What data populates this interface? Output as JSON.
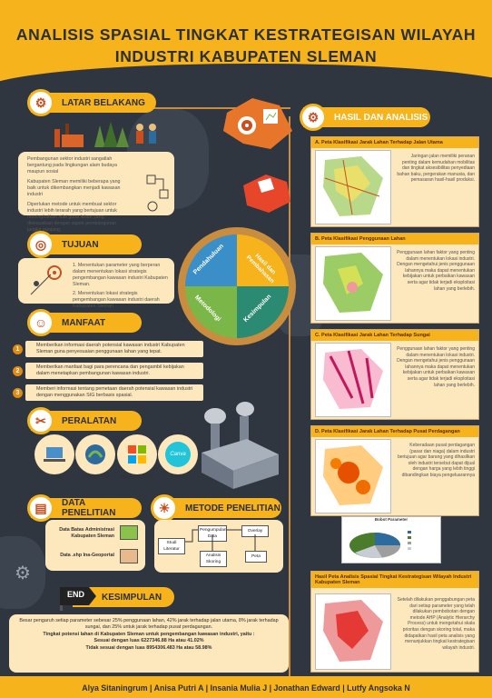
{
  "title": {
    "line1": "ANALISIS SPASIAL TINGKAT KESTRATEGISAN WILAYAH",
    "line2": "INDUSTRI KABUPATEN SLEMAN"
  },
  "latar": {
    "heading": "LATAR BELAKANG",
    "b1": "Pembangunan sektor industri sangatlah bergantung pada lingkungan alam budaya maupun sosial",
    "b2": "Kabupaten Sleman memiliki beberapa yang baik untuk dikembangkan menjadi kawasan industri",
    "b3": "Diperlukan metode untuk membuat sektor industri lebih terarah yang bertujuan untuk meningkatkan nilai guna lahan yang disesuaikan dengan aspek pembangunan jangka panjang."
  },
  "tujuan": {
    "heading": "TUJUAN",
    "t1": "1. Menentukan parameter yang berperan dalam menentukan lokasi strategis pengembangan kawasan industri Kabupaten Sleman.",
    "t2": "2. Menentukan lokasi strategis pengembangan kawasan industri daerah Kabupaten Sleman"
  },
  "manfaat": {
    "heading": "MANFAAT",
    "items": [
      {
        "n": "1",
        "t": "Memberikan informasi daerah potensial kawasan industri Kabupaten Sleman guna penyesuaian penggunaan lahan yang tepat."
      },
      {
        "n": "2",
        "t": "Memberikan manfaat bagi para perencana dan pengambil kebijakan dalam menetapkan pembangunan kawasan industri."
      },
      {
        "n": "3",
        "t": "Memberi informasi tentang pemetaan daerah potensial kawasan industri dengan menggunakan SIG berbasis spasial."
      }
    ]
  },
  "peralatan": {
    "heading": "PERALATAN",
    "tools": [
      {
        "name": "Laptop",
        "icon": "laptop-icon"
      },
      {
        "name": "ArcMap 10.8",
        "icon": "arcmap-icon"
      },
      {
        "name": "Microsoft 2019",
        "icon": "microsoft-icon"
      },
      {
        "name": "Canva",
        "icon": "canva-icon"
      }
    ]
  },
  "data": {
    "heading": "DATA PENELITIAN",
    "d1": "Data Batas Administrasi Kabupaten Sleman",
    "d2": "Data .shp Ina-Geoportal"
  },
  "metode": {
    "heading": "METODE PENELITIAN",
    "studi": "Studi Literatur",
    "pengumpulan": "Pengumpulan Data",
    "overlay": "Overlay",
    "analisis": "Analisis Skoring",
    "peta": "Peta"
  },
  "puzzle": {
    "p1": "Pendahuluan",
    "p2": "Hasil dan Pembahasan",
    "p3": "Metodologi",
    "p4": "Kesimpulan"
  },
  "hasil": {
    "heading": "HASIL DAN ANALISIS",
    "panels": [
      {
        "title": "A. Peta Klasifikasi Jarak Lahan Terhadap Jalan Utama",
        "text": "Jaringan jalan memiliki peranan penting dalam kemudahan mobilitas dan tingkat aksesibilitas penyediaan bahan baku, pergerakan manusia, dan pemasaran hasil-hasil produksi."
      },
      {
        "title": "B. Peta Klasifikasi Penggunaan Lahan",
        "text": "Penggunaan lahan faktor yang penting dalam menentukan lokasi industri. Dengan mengetahui jenis penggunaan lahannya maka dapat menentukan kebijakan untuk perbaikan kawasan serta agar tidak terjadi eksploitasi lahan yang berlebih."
      },
      {
        "title": "C. Peta Klasifikasi Jarak Lahan Terhadap Sungai",
        "text": "Penggunaan lahan faktor yang penting dalam menentukan lokasi industri. Dengan mengetahui jenis penggunaan lahannya maka dapat menentukan kebijakan untuk perbaikan kawasan serta agar tidak terjadi eksploitasi lahan yang berlebih."
      },
      {
        "title": "D. Peta Klasifikasi Jarak Lahan Terhadap Pusat Perdagangan",
        "text": "Keberadaan pusat perdagangan (pasar dan niaga) dalam industri bertujuan agar barang yang dihasilkan oleh industri tersebut dapat dijual dengan harga yang lebih tinggi dibandingkan biaya pengeluarannya"
      }
    ],
    "pie_title": "Bobot Parameter",
    "final_title": "Hasil Peta Analisis Spasial Tingkat Kestrategisan Wilayah Industri Kabupaten Sleman",
    "final_text": "Setelah dilakukan penggabungan peta dari setiap parameter yang telah dilakukan pembobotan dengan metode AHP (Analytic Hierarchy Process) untuk mengetahui skala prioritas dengan skoring total, maka didapatkan hasil peta analisis yang menunjukkan tingkat kestrategisan wilayah industri."
  },
  "kesimpulan": {
    "heading": "KESIMPULAN",
    "l1": "Besar pengaruh setiap parameter sebesar 25% penggunaan lahan, 42% jarak terhadap jalan utama, 8% jarak terhadap sungai, dan 25% untuk jarak terhadap pusat perdagangan.",
    "l2": "Tingkat potensi lahan di Kabupaten Sleman untuk pengembangan kawasan industri, yaitu :",
    "l3": "Sesuai dengan luas 6227346.88 Ha atau 41.02%",
    "l4": "Tidak sesuai dengan luas 8954306.483 Ha atau 58.98%",
    "end": "END"
  },
  "footer": "Alya Sitaningrum | Anisa Putri A | Insania Mulia J | Jonathan Edward | Lutfy Angsoka N",
  "colors": {
    "accent": "#f6b31b",
    "dark": "#2f3640",
    "cream": "#fde7bd",
    "green": "#7ab648",
    "blue": "#3a8fc9"
  }
}
